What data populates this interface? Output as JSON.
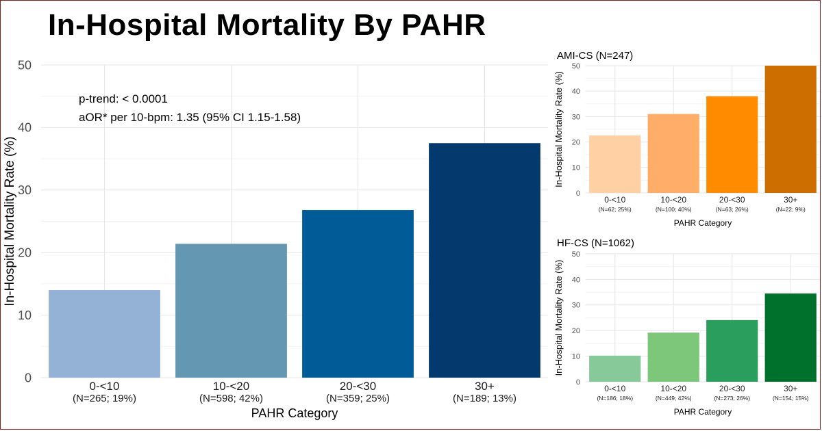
{
  "page": {
    "title": "In-Hospital Mortality By PAHR"
  },
  "colors": {
    "main": [
      "#93b2d6",
      "#6497b1",
      "#005b96",
      "#03396c"
    ],
    "ami": [
      "#ffd0a3",
      "#ffad69",
      "#ff8b00",
      "#cc6e00"
    ],
    "hf": [
      "#88c999",
      "#7dc77a",
      "#2a9e5d",
      "#00712c"
    ],
    "grid": "#e6e6e6",
    "tick": "#4d4d4d"
  },
  "chart_data": [
    {
      "id": "main",
      "type": "bar",
      "title": "",
      "categories": [
        "0-<10",
        "10-<20",
        "20-<30",
        "30+"
      ],
      "sublabels": [
        "(N=265; 19%)",
        "(N=598; 42%)",
        "(N=359; 25%)",
        "(N=189; 13%)"
      ],
      "values": [
        14,
        21.4,
        26.8,
        37.5
      ],
      "xlabel": "PAHR Category",
      "ylabel": "In-Hospital Mortality Rate (%)",
      "ylim": [
        0,
        50
      ],
      "yticks": [
        0,
        10,
        20,
        30,
        40,
        50
      ],
      "annotations": [
        "p-trend: < 0.0001",
        "aOR* per 10-bpm: 1.35 (95% CI 1.15-1.58)"
      ],
      "grid": true
    },
    {
      "id": "ami",
      "type": "bar",
      "title": "AMI-CS (N=247)",
      "categories": [
        "0-<10",
        "10-<20",
        "20-<30",
        "30+"
      ],
      "sublabels": [
        "(N=62; 25%)",
        "(N=100; 40%)",
        "(N=63; 26%)",
        "(N=22; 9%)"
      ],
      "values": [
        22.6,
        31,
        38,
        50
      ],
      "xlabel": "PAHR Category",
      "ylabel": "In-Hospital Mortality Rate (%)",
      "ylim": [
        0,
        50
      ],
      "yticks": [
        0,
        10,
        20,
        30,
        40,
        50
      ],
      "grid": true
    },
    {
      "id": "hf",
      "type": "bar",
      "title": "HF-CS (N=1062)",
      "categories": [
        "0-<10",
        "10-<20",
        "20-<30",
        "30+"
      ],
      "sublabels": [
        "(N=186; 18%)",
        "(N=449; 42%)",
        "(N=273; 26%)",
        "(N=154; 15%)"
      ],
      "values": [
        10.2,
        19.2,
        24.1,
        34.5
      ],
      "xlabel": "PAHR Category",
      "ylabel": "In-Hospital Mortality Rate (%)",
      "ylim": [
        0,
        50
      ],
      "yticks": [
        0,
        10,
        20,
        30,
        40,
        50
      ],
      "grid": true
    }
  ]
}
